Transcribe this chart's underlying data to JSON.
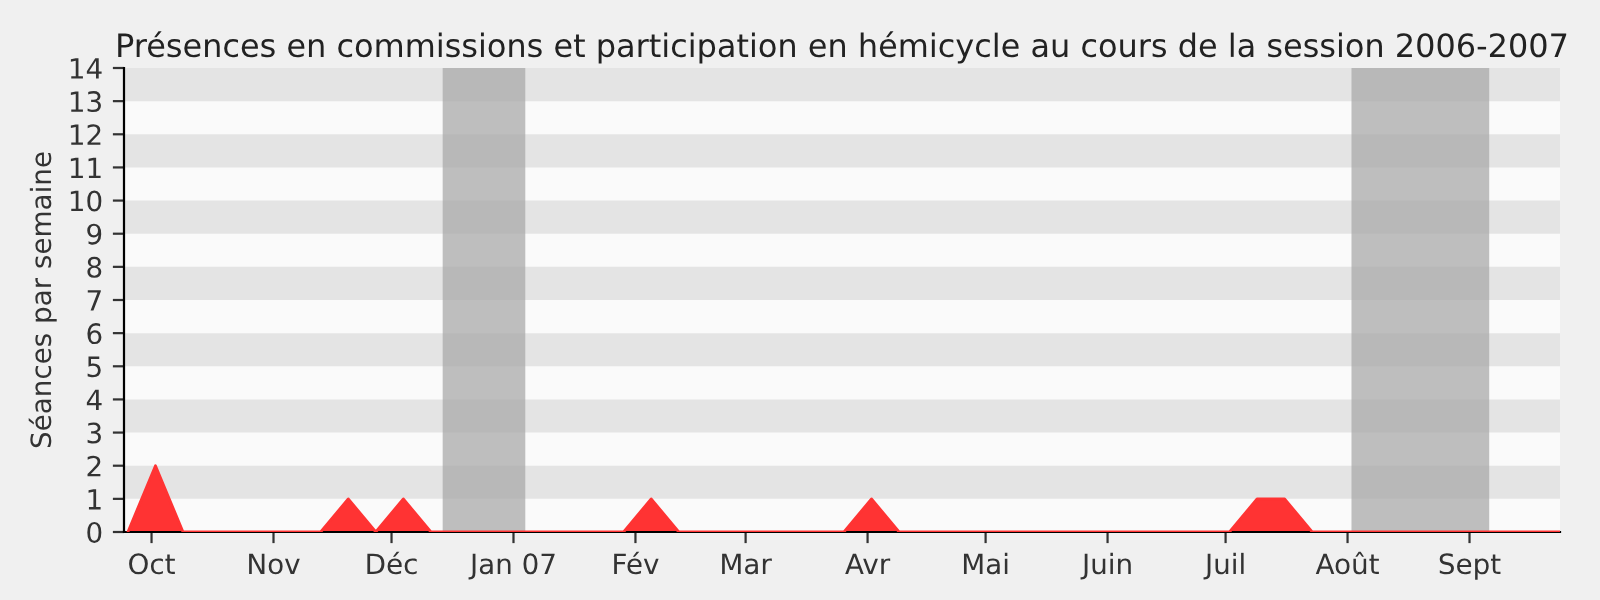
{
  "chart_data": {
    "type": "area",
    "title": "Présences en commissions et participation en hémicycle au cours de la session 2006-2007",
    "ylabel": "Séances par semaine",
    "x": [
      "2006-09-25",
      "2006-10-02",
      "2006-10-09",
      "2006-10-16",
      "2006-10-23",
      "2006-10-30",
      "2006-11-06",
      "2006-11-13",
      "2006-11-20",
      "2006-11-27",
      "2006-12-04",
      "2006-12-11",
      "2006-12-18",
      "2006-12-25",
      "2007-01-01",
      "2007-01-08",
      "2007-01-15",
      "2007-01-22",
      "2007-01-29",
      "2007-02-05",
      "2007-02-12",
      "2007-02-19",
      "2007-02-26",
      "2007-03-05",
      "2007-03-12",
      "2007-03-19",
      "2007-03-26",
      "2007-04-02",
      "2007-04-09",
      "2007-04-16",
      "2007-04-23",
      "2007-04-30",
      "2007-05-07",
      "2007-05-14",
      "2007-05-21",
      "2007-05-28",
      "2007-06-04",
      "2007-06-11",
      "2007-06-18",
      "2007-06-25",
      "2007-07-02",
      "2007-07-09",
      "2007-07-16",
      "2007-07-23",
      "2007-07-30",
      "2007-08-06",
      "2007-08-13",
      "2007-08-20",
      "2007-08-27",
      "2007-09-03",
      "2007-09-10",
      "2007-09-17",
      "2007-09-24"
    ],
    "series": [
      {
        "color": "#ff3333",
        "values": [
          0,
          2,
          0,
          0,
          0,
          0,
          0,
          0,
          1,
          0,
          1,
          0,
          0,
          0,
          0,
          0,
          0,
          0,
          0,
          1,
          0,
          0,
          0,
          0,
          0,
          0,
          0,
          1,
          0,
          0,
          0,
          0,
          0,
          0,
          0,
          0,
          0,
          0,
          0,
          0,
          0,
          1,
          1,
          0,
          0,
          0,
          0,
          0,
          0,
          0,
          0,
          0,
          0
        ]
      }
    ],
    "xlim": [
      "2006-09-24",
      "2007-09-24"
    ],
    "xticks": [
      {
        "value": "2006-10-01",
        "label": "Oct"
      },
      {
        "value": "2006-11-01",
        "label": "Nov"
      },
      {
        "value": "2006-12-01",
        "label": "Déc"
      },
      {
        "value": "2007-01-01",
        "label": "Jan 07"
      },
      {
        "value": "2007-02-01",
        "label": "Fév"
      },
      {
        "value": "2007-03-01",
        "label": "Mar"
      },
      {
        "value": "2007-04-01",
        "label": "Avr"
      },
      {
        "value": "2007-05-01",
        "label": "Mai"
      },
      {
        "value": "2007-06-01",
        "label": "Juin"
      },
      {
        "value": "2007-07-01",
        "label": "Juil"
      },
      {
        "value": "2007-08-01",
        "label": "Août"
      },
      {
        "value": "2007-09-01",
        "label": "Sept"
      }
    ],
    "ylim": [
      0,
      14
    ],
    "yticks": [
      0,
      1,
      2,
      3,
      4,
      5,
      6,
      7,
      8,
      9,
      10,
      11,
      12,
      13,
      14
    ],
    "bands": [
      {
        "axis": "x",
        "from": "2006-12-14",
        "to": "2007-01-04",
        "color": "#aaaaaa"
      },
      {
        "axis": "x",
        "from": "2007-08-02",
        "to": "2007-09-06",
        "color": "#aaaaaa"
      }
    ],
    "legend": false
  }
}
